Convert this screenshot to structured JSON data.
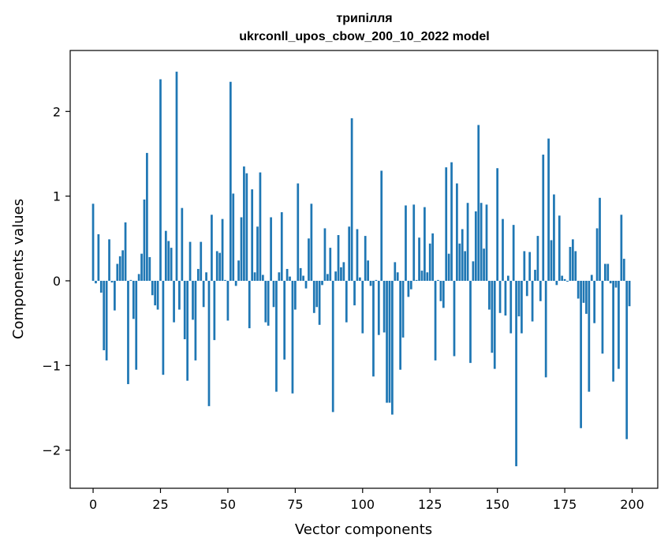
{
  "chart_data": {
    "type": "bar",
    "title_line1": "трипілля",
    "title_line2": "ukrconll_upos_cbow_200_10_2022 model",
    "xlabel": "Vector components",
    "ylabel": "Components values",
    "xlim": [
      -8.5,
      209.5
    ],
    "ylim": [
      -2.45,
      2.72
    ],
    "x_ticks": [
      0,
      25,
      50,
      75,
      100,
      125,
      150,
      175,
      200
    ],
    "y_ticks": [
      -2,
      -1,
      0,
      1,
      2
    ],
    "x_tick_labels": [
      "0",
      "25",
      "50",
      "75",
      "100",
      "125",
      "150",
      "175",
      "200"
    ],
    "y_tick_labels": [
      "−2",
      "−1",
      "0",
      "1",
      "2"
    ],
    "bar_color": "#1f77b4",
    "grid": false,
    "values": [
      0.91,
      -0.03,
      0.55,
      -0.14,
      -0.82,
      -0.94,
      0.49,
      -0.02,
      -0.35,
      0.2,
      0.29,
      0.36,
      0.69,
      -1.22,
      0.01,
      -0.45,
      -1.05,
      0.08,
      0.32,
      0.96,
      1.51,
      0.28,
      -0.17,
      -0.29,
      -0.34,
      2.38,
      -1.11,
      0.59,
      0.47,
      0.39,
      -0.49,
      2.47,
      -0.34,
      0.86,
      -0.69,
      -1.18,
      0.46,
      -0.46,
      -0.94,
      0.14,
      0.46,
      -0.31,
      0.1,
      -1.48,
      0.78,
      -0.7,
      0.35,
      0.33,
      0.73,
      0.01,
      -0.47,
      2.35,
      1.03,
      -0.06,
      0.24,
      0.75,
      1.35,
      1.27,
      -0.56,
      1.08,
      0.1,
      0.64,
      1.28,
      0.07,
      -0.49,
      -0.53,
      0.75,
      -0.31,
      -1.31,
      0.1,
      0.81,
      -0.93,
      0.14,
      0.05,
      -1.33,
      -0.34,
      1.15,
      0.15,
      0.06,
      -0.09,
      0.5,
      0.91,
      -0.38,
      -0.31,
      -0.52,
      -0.05,
      0.62,
      0.08,
      0.39,
      -1.55,
      0.11,
      0.54,
      0.16,
      0.22,
      -0.49,
      0.64,
      1.92,
      -0.29,
      0.61,
      0.04,
      -0.62,
      0.53,
      0.24,
      -0.06,
      -1.13,
      0.01,
      -0.64,
      1.3,
      -0.61,
      -1.44,
      -1.44,
      -1.58,
      0.22,
      0.1,
      -1.05,
      -0.67,
      0.89,
      -0.19,
      -0.1,
      0.9,
      0.01,
      0.51,
      0.12,
      0.87,
      0.1,
      0.44,
      0.56,
      -0.94,
      0.01,
      -0.24,
      -0.32,
      1.34,
      0.32,
      1.4,
      -0.89,
      1.15,
      0.44,
      0.61,
      0.35,
      0.92,
      -0.97,
      0.23,
      0.82,
      1.84,
      0.92,
      0.38,
      0.9,
      -0.34,
      -0.85,
      -1.04,
      1.33,
      -0.38,
      0.73,
      -0.41,
      0.06,
      -0.62,
      0.66,
      -2.19,
      -0.42,
      -0.62,
      0.35,
      -0.18,
      0.34,
      -0.48,
      0.13,
      0.53,
      -0.24,
      1.49,
      -1.14,
      1.68,
      0.48,
      1.02,
      -0.05,
      0.77,
      0.06,
      0.02,
      -0.01,
      0.4,
      0.49,
      0.35,
      -0.21,
      -1.74,
      -0.26,
      -0.39,
      -1.31,
      0.07,
      -0.5,
      0.62,
      0.98,
      -0.86,
      0.2,
      0.2,
      -0.03,
      -1.19,
      -0.08,
      -1.04,
      0.78,
      0.26,
      -1.87,
      -0.3
    ]
  }
}
